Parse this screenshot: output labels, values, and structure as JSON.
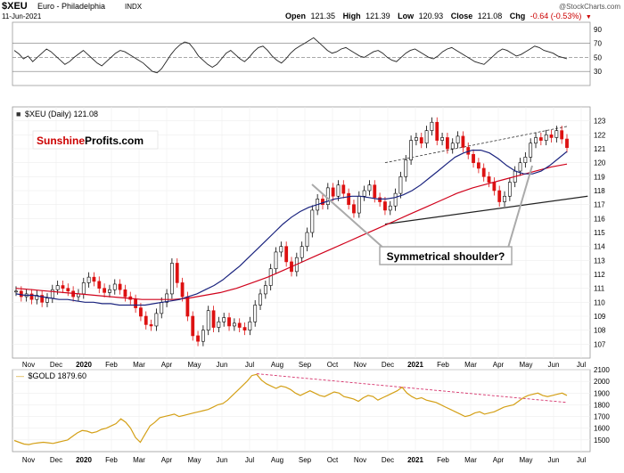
{
  "header": {
    "symbol": "$XEU",
    "name": "Euro - Philadelphia",
    "exchange": "INDX",
    "date": "11-Jun-2021",
    "watermark": "@StockCharts.com",
    "open_label": "Open",
    "open": "121.35",
    "high_label": "High",
    "high": "121.39",
    "low_label": "Low",
    "low": "120.93",
    "close_label": "Close",
    "close": "121.08",
    "chg_label": "Chg",
    "chg": "-0.64 (-0.53%)"
  },
  "brand": {
    "part1": "Sunshine",
    "part2": "Profits.com"
  },
  "annotation": {
    "text": "Symmetrical shoulder?"
  },
  "chart_data": [
    {
      "type": "line",
      "panel": "rsi",
      "yticks": [
        90,
        70,
        50,
        30
      ],
      "ylim": [
        10,
        100
      ],
      "reference_lines": [
        70,
        50,
        30
      ],
      "series": [
        {
          "values": [
            60,
            55,
            48,
            52,
            44,
            50,
            56,
            62,
            58,
            52,
            46,
            40,
            44,
            50,
            55,
            60,
            54,
            48,
            42,
            38,
            44,
            50,
            56,
            60,
            58,
            54,
            50,
            46,
            42,
            36,
            30,
            28,
            34,
            44,
            54,
            62,
            68,
            72,
            70,
            62,
            52,
            46,
            40,
            36,
            40,
            48,
            56,
            60,
            54,
            48,
            44,
            50,
            58,
            64,
            66,
            60,
            52,
            46,
            42,
            48,
            56,
            62,
            66,
            70,
            74,
            78,
            72,
            66,
            60,
            56,
            58,
            62,
            64,
            60,
            56,
            52,
            50,
            54,
            58,
            60,
            56,
            50,
            46,
            44,
            50,
            56,
            60,
            62,
            58,
            54,
            50,
            48,
            52,
            58,
            62,
            64,
            60,
            56,
            52,
            48,
            44,
            42,
            40,
            46,
            52,
            58,
            62,
            60,
            56,
            52,
            54,
            58,
            62,
            66,
            64,
            60,
            58,
            56,
            52,
            50,
            48
          ]
        }
      ]
    },
    {
      "type": "candlestick",
      "panel": "price",
      "title": "$XEU (Daily) 121.08",
      "ylim": [
        106,
        124
      ],
      "yticks": [
        107,
        108,
        109,
        110,
        111,
        112,
        113,
        114,
        115,
        116,
        117,
        118,
        119,
        120,
        121,
        122,
        123
      ],
      "x_ticks": [
        "Nov",
        "Dec",
        "2020",
        "Feb",
        "Mar",
        "Apr",
        "May",
        "Jun",
        "Jul",
        "Aug",
        "Sep",
        "Oct",
        "Nov",
        "Dec",
        "2021",
        "Feb",
        "Mar",
        "Apr",
        "May",
        "Jun",
        "Jul"
      ],
      "closes": [
        110.8,
        110.4,
        110.6,
        110.2,
        110.5,
        110.0,
        110.3,
        110.9,
        111.2,
        111.0,
        110.8,
        110.4,
        110.6,
        111.4,
        111.8,
        111.5,
        111.0,
        110.7,
        110.9,
        111.3,
        110.9,
        110.4,
        110.2,
        109.6,
        109.0,
        108.4,
        108.3,
        109.2,
        110.0,
        110.6,
        112.8,
        111.4,
        110.4,
        109.0,
        107.6,
        107.2,
        108.0,
        109.4,
        108.2,
        108.6,
        108.9,
        108.3,
        108.5,
        108.2,
        108.0,
        108.6,
        109.8,
        110.6,
        111.2,
        112.4,
        113.6,
        114.0,
        112.9,
        112.2,
        113.2,
        114.0,
        115.0,
        116.6,
        117.4,
        117.0,
        118.2,
        117.6,
        118.4,
        117.8,
        117.0,
        116.4,
        117.6,
        118.0,
        118.4,
        117.5,
        117.2,
        116.6,
        116.9,
        117.8,
        119.0,
        120.2,
        121.6,
        121.8,
        121.4,
        122.3,
        122.9,
        121.6,
        121.8,
        121.0,
        121.4,
        121.9,
        121.1,
        120.6,
        120.0,
        119.6,
        119.0,
        118.6,
        118.0,
        117.2,
        117.6,
        118.6,
        119.4,
        120.0,
        120.4,
        121.4,
        121.8,
        121.6,
        122.0,
        121.8,
        122.3,
        121.7,
        121.08
      ],
      "ma50": [
        110.6,
        110.5,
        110.5,
        110.4,
        110.3,
        110.2,
        110.2,
        110.1,
        110.0,
        110.0,
        109.9,
        109.9,
        109.8,
        109.8,
        109.8,
        109.8,
        109.9,
        110.0,
        110.1,
        110.2,
        110.4,
        110.6,
        110.9,
        111.2,
        111.6,
        112.1,
        112.6,
        113.2,
        113.8,
        114.4,
        115.0,
        115.6,
        116.1,
        116.5,
        116.8,
        117.0,
        117.2,
        117.4,
        117.5,
        117.6,
        117.6,
        117.5,
        117.4,
        117.4,
        117.5,
        117.7,
        118.0,
        118.4,
        118.9,
        119.4,
        119.9,
        120.4,
        120.7,
        120.9,
        120.9,
        120.7,
        120.3,
        119.8,
        119.4,
        119.2,
        119.2,
        119.4,
        119.8,
        120.3,
        120.8
      ],
      "ma200": [
        111.0,
        110.9,
        110.8,
        110.7,
        110.6,
        110.5,
        110.4,
        110.3,
        110.2,
        110.2,
        110.2,
        110.3,
        110.5,
        110.7,
        111.0,
        111.4,
        111.8,
        112.3,
        112.8,
        113.3,
        113.8,
        114.3,
        114.8,
        115.3,
        115.8,
        116.3,
        116.8,
        117.3,
        117.8,
        118.2,
        118.5,
        118.8,
        119.1,
        119.4,
        119.7,
        119.9
      ]
    },
    {
      "type": "line",
      "panel": "gold",
      "title": "$GOLD 1879.60",
      "ylim": [
        1400,
        2100
      ],
      "yticks": [
        2100,
        2000,
        1900,
        1800,
        1700,
        1600,
        1500
      ],
      "x_ticks": [
        "Nov",
        "Dec",
        "2020",
        "Feb",
        "Mar",
        "Apr",
        "May",
        "Jun",
        "Jul",
        "Aug",
        "Sep",
        "Oct",
        "Nov",
        "Dec",
        "2021",
        "Feb",
        "Mar",
        "Apr",
        "May",
        "Jun",
        "Jul"
      ],
      "series": [
        {
          "values": [
            1495,
            1480,
            1465,
            1460,
            1470,
            1475,
            1480,
            1475,
            1470,
            1480,
            1490,
            1500,
            1530,
            1560,
            1580,
            1575,
            1560,
            1570,
            1590,
            1600,
            1620,
            1640,
            1680,
            1650,
            1600,
            1520,
            1480,
            1550,
            1620,
            1650,
            1690,
            1700,
            1710,
            1720,
            1700,
            1710,
            1720,
            1730,
            1740,
            1750,
            1760,
            1780,
            1800,
            1810,
            1840,
            1880,
            1920,
            1960,
            2000,
            2050,
            2060,
            2010,
            1980,
            1960,
            1940,
            1960,
            1950,
            1930,
            1900,
            1880,
            1900,
            1920,
            1900,
            1880,
            1870,
            1890,
            1910,
            1900,
            1870,
            1860,
            1850,
            1830,
            1860,
            1880,
            1870,
            1840,
            1860,
            1880,
            1900,
            1920,
            1950,
            1900,
            1870,
            1850,
            1860,
            1840,
            1830,
            1820,
            1800,
            1780,
            1760,
            1740,
            1720,
            1700,
            1710,
            1730,
            1740,
            1720,
            1730,
            1740,
            1760,
            1780,
            1790,
            1800,
            1830,
            1860,
            1880,
            1890,
            1900,
            1880,
            1870,
            1880,
            1890,
            1900,
            1880
          ]
        }
      ]
    }
  ]
}
